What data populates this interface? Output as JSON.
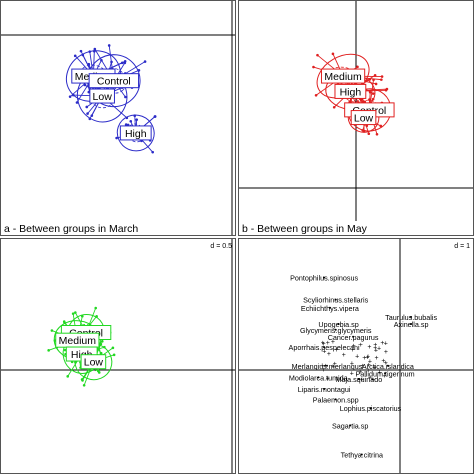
{
  "chart_data": [
    {
      "type": "scatter",
      "panel": "a",
      "caption": "a - Between groups in March",
      "scale_label": "",
      "color": "#2b2bc8",
      "axes_origin": [
        0,
        0
      ],
      "xlim": [
        -2,
        2
      ],
      "ylim": [
        -2.2,
        1.6
      ],
      "groups": [
        {
          "name": "Medium",
          "x": -0.6,
          "y": 0.75,
          "spread": [
            0.9,
            0.75
          ]
        },
        {
          "name": "Control",
          "x": 0.1,
          "y": 0.6,
          "spread": [
            0.85,
            0.8
          ]
        },
        {
          "name": "Low",
          "x": -0.3,
          "y": 0.1,
          "spread": [
            0.8,
            0.8
          ]
        },
        {
          "name": "High",
          "x": 0.85,
          "y": -1.1,
          "spread": [
            0.6,
            0.55
          ]
        }
      ]
    },
    {
      "type": "scatter",
      "panel": "b",
      "caption": "b - Between groups in May",
      "scale_label": "",
      "color": "#e02020",
      "axes_origin": [
        0,
        0
      ],
      "xlim": [
        -2,
        2
      ],
      "ylim": [
        -2.2,
        1.6
      ],
      "groups": [
        {
          "name": "Medium",
          "x": -0.2,
          "y": 0.75,
          "spread": [
            0.9,
            0.6
          ]
        },
        {
          "name": "High",
          "x": 0.05,
          "y": 0.25,
          "spread": [
            0.8,
            0.55
          ]
        },
        {
          "name": "Control",
          "x": 0.7,
          "y": -0.35,
          "spread": [
            0.7,
            0.65
          ]
        },
        {
          "name": "Low",
          "x": 0.5,
          "y": -0.6,
          "spread": [
            0.5,
            0.45
          ]
        }
      ]
    },
    {
      "type": "scatter",
      "panel": "c",
      "caption": "",
      "scale_label": "d = 0.5",
      "color": "#22d822",
      "axes_origin": [
        0,
        0
      ],
      "xlim": [
        -2,
        2
      ],
      "ylim": [
        -2.2,
        1.6
      ],
      "groups": [
        {
          "name": "Control",
          "x": -0.85,
          "y": 0.15,
          "spread": [
            0.6,
            0.55
          ]
        },
        {
          "name": "Medium",
          "x": -1.15,
          "y": -0.1,
          "spread": [
            0.75,
            0.6
          ]
        },
        {
          "name": "High",
          "x": -1.0,
          "y": -0.55,
          "spread": [
            0.6,
            0.6
          ]
        },
        {
          "name": "Low",
          "x": -0.6,
          "y": -0.8,
          "spread": [
            0.6,
            0.55
          ]
        }
      ]
    },
    {
      "type": "scatter",
      "panel": "d",
      "caption": "",
      "scale_label": "d = 1",
      "color": "#000000",
      "axes_origin": [
        0,
        0
      ],
      "xlim": [
        -2,
        2
      ],
      "ylim": [
        -2.2,
        1.6
      ],
      "species": [
        {
          "name": "Pontophilus.spinosus",
          "x": -0.55,
          "y": 1.3
        },
        {
          "name": "Scyliorhinus.stellaris",
          "x": -0.35,
          "y": 0.92
        },
        {
          "name": "Echiichthys.vipera",
          "x": -0.45,
          "y": 0.78
        },
        {
          "name": "Taurulus.bubalis",
          "x": 0.95,
          "y": 0.62
        },
        {
          "name": "Upogebia.sp",
          "x": -0.3,
          "y": 0.5
        },
        {
          "name": "Axinella.sp",
          "x": 0.95,
          "y": 0.5
        },
        {
          "name": "Glycymeris.glycymeris",
          "x": -0.35,
          "y": 0.4
        },
        {
          "name": "Cancer.pagurus",
          "x": -0.05,
          "y": 0.28
        },
        {
          "name": "Aporrhais.pespelecani",
          "x": -0.55,
          "y": 0.1
        },
        {
          "name": "Merlangius.merlangus",
          "x": -0.5,
          "y": -0.22
        },
        {
          "name": "Arctica.islandica",
          "x": 0.55,
          "y": -0.22
        },
        {
          "name": "Pallidum.tigerinum",
          "x": 0.5,
          "y": -0.35
        },
        {
          "name": "Modiolarca.tumida",
          "x": -0.65,
          "y": -0.42
        },
        {
          "name": "Maja.squinado",
          "x": 0.05,
          "y": -0.45
        },
        {
          "name": "Liparis.montagui",
          "x": -0.55,
          "y": -0.62
        },
        {
          "name": "Palaemon.spp",
          "x": -0.35,
          "y": -0.8
        },
        {
          "name": "Lophius.piscatorius",
          "x": 0.25,
          "y": -0.95
        },
        {
          "name": "Sagartia.sp",
          "x": -0.1,
          "y": -1.25
        },
        {
          "name": "Tethya.citrina",
          "x": 0.1,
          "y": -1.75
        }
      ]
    }
  ]
}
